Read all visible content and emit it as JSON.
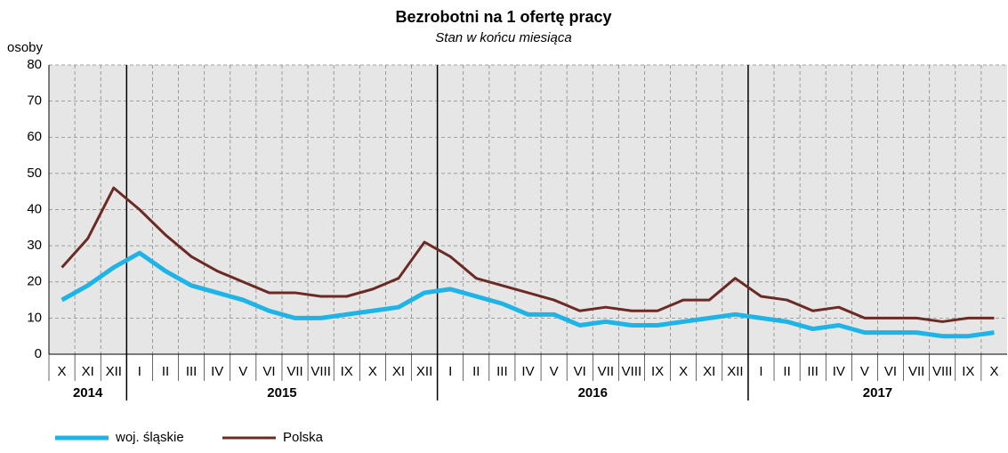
{
  "chart_data": {
    "type": "line",
    "title": "Bezrobotni na 1 ofertę pracy",
    "subtitle": "Stan w końcu miesiąca",
    "y_label": "osoby",
    "categories": [
      "X",
      "XI",
      "XII",
      "I",
      "II",
      "III",
      "IV",
      "V",
      "VI",
      "VII",
      "VIII",
      "IX",
      "X",
      "XI",
      "XII",
      "I",
      "II",
      "III",
      "IV",
      "V",
      "VI",
      "VII",
      "VIII",
      "IX",
      "X",
      "XI",
      "XII",
      "I",
      "II",
      "III",
      "IV",
      "V",
      "VI",
      "VII",
      "VIII",
      "IX",
      "X"
    ],
    "groups": [
      {
        "label": "2014",
        "span": 3
      },
      {
        "label": "2015",
        "span": 12
      },
      {
        "label": "2016",
        "span": 12
      },
      {
        "label": "2017",
        "span": 10
      }
    ],
    "series": [
      {
        "name": "woj. śląskie",
        "color": "#1fb4e8",
        "values": [
          15,
          19,
          24,
          28,
          23,
          19,
          17,
          15,
          12,
          10,
          10,
          11,
          12,
          13,
          17,
          18,
          16,
          14,
          11,
          11,
          8,
          9,
          8,
          8,
          9,
          10,
          11,
          10,
          9,
          7,
          8,
          6,
          6,
          6,
          5,
          5,
          6
        ]
      },
      {
        "name": "Polska",
        "color": "#6b2a24",
        "values": [
          24,
          32,
          46,
          40,
          33,
          27,
          23,
          20,
          17,
          17,
          16,
          16,
          18,
          21,
          31,
          27,
          21,
          19,
          17,
          15,
          12,
          13,
          12,
          12,
          15,
          15,
          21,
          16,
          15,
          12,
          13,
          10,
          10,
          10,
          9,
          10,
          10
        ]
      }
    ],
    "ylim": [
      0,
      80
    ],
    "yticks": [
      0,
      10,
      20,
      30,
      40,
      50,
      60,
      70,
      80
    ],
    "grid": true,
    "legend": "bottom-left"
  }
}
